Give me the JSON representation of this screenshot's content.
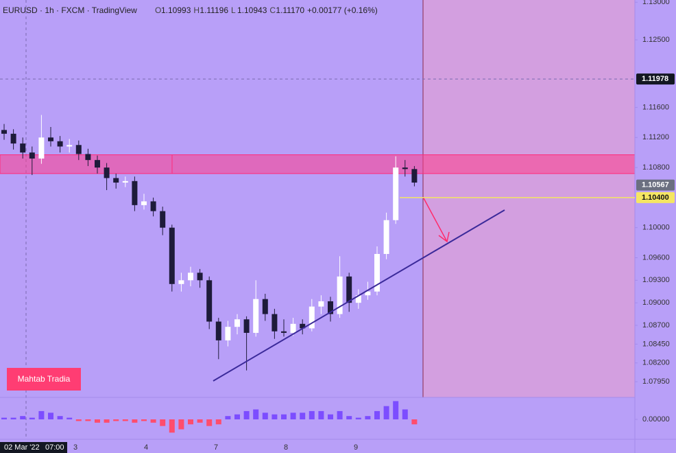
{
  "chart_data": {
    "type": "candlestick",
    "header": {
      "symbol": "EURUSD · 1h · FXCM · TradingView",
      "ohlc": [
        {
          "key": "O",
          "value": "1.10993"
        },
        {
          "key": "H",
          "value": "1.11196"
        },
        {
          "key": "L",
          "value": "1.10943"
        },
        {
          "key": "C",
          "value": "1.11170"
        }
      ],
      "change": "+0.00177 (+0.16%)"
    },
    "badge": "Mahtab Tradia",
    "x_labels": [
      "02 Mar '22",
      "07:00",
      "3",
      "4",
      "7",
      "8",
      "9"
    ],
    "up_color": "#ffffff",
    "down_color": "#1e1b3a",
    "open": [
      1.113,
      1.1125,
      1.1112,
      1.11,
      1.1092,
      1.112,
      1.1115,
      1.1108,
      1.111,
      1.1098,
      1.109,
      1.108,
      1.1066,
      1.106,
      1.1062,
      1.103,
      1.1035,
      1.1022,
      1.1,
      1.0925,
      1.093,
      1.094,
      1.093,
      1.0875,
      1.085,
      1.0868,
      1.0878,
      1.086,
      1.0905,
      1.0885,
      1.0862,
      1.086,
      1.0872,
      1.0866,
      1.0895,
      1.0902,
      1.0885,
      1.0935,
      1.09,
      1.091,
      1.0915,
      1.0965,
      1.101,
      1.108,
      1.1078
    ],
    "high": [
      1.1138,
      1.1131,
      1.112,
      1.1108,
      1.115,
      1.1134,
      1.1122,
      1.1118,
      1.1116,
      1.1105,
      1.1096,
      1.1086,
      1.1072,
      1.1068,
      1.1068,
      1.1045,
      1.104,
      1.1028,
      1.1004,
      1.094,
      1.0948,
      1.0945,
      1.0935,
      1.088,
      1.0876,
      1.0885,
      1.0882,
      1.093,
      1.0912,
      1.0892,
      1.0878,
      1.088,
      1.0878,
      1.0905,
      1.091,
      1.0908,
      1.0962,
      1.094,
      1.0918,
      1.0928,
      1.0975,
      1.102,
      1.1095,
      1.109,
      1.1082
    ],
    "low": [
      1.1117,
      1.1104,
      1.1092,
      1.107,
      1.1085,
      1.1108,
      1.11,
      1.11,
      1.109,
      1.1082,
      1.1072,
      1.105,
      1.1052,
      1.1054,
      1.1022,
      1.1024,
      1.1015,
      1.099,
      1.0915,
      1.0915,
      1.0922,
      1.092,
      1.0865,
      1.0825,
      1.0842,
      1.0858,
      1.081,
      1.0855,
      1.0876,
      1.0852,
      1.0855,
      1.0856,
      1.0858,
      1.0862,
      1.0885,
      1.0875,
      1.088,
      1.0888,
      1.0892,
      1.0904,
      1.091,
      1.0958,
      1.1005,
      1.1068,
      1.1055
    ],
    "close": [
      1.1125,
      1.1112,
      1.11,
      1.1092,
      1.112,
      1.1115,
      1.1108,
      1.111,
      1.1098,
      1.109,
      1.108,
      1.1066,
      1.106,
      1.1062,
      1.103,
      1.1035,
      1.1022,
      1.1,
      1.0925,
      1.093,
      1.094,
      1.093,
      1.0875,
      1.085,
      1.0868,
      1.0878,
      1.086,
      1.0905,
      1.0885,
      1.0862,
      1.086,
      1.0872,
      1.0866,
      1.0895,
      1.0902,
      1.0885,
      1.0935,
      1.09,
      1.091,
      1.0915,
      1.0965,
      1.101,
      1.108,
      1.1078,
      1.106
    ],
    "ylim": [
      1.0775,
      1.1303
    ],
    "yticks": [
      {
        "value": 1.13,
        "label": "1.13000"
      },
      {
        "value": 1.125,
        "label": "1.12500"
      },
      {
        "value": 1.116,
        "label": "1.11600"
      },
      {
        "value": 1.112,
        "label": "1.11200"
      },
      {
        "value": 1.108,
        "label": "1.10800"
      },
      {
        "value": 1.1,
        "label": "1.10000"
      },
      {
        "value": 1.096,
        "label": "1.09600"
      },
      {
        "value": 1.093,
        "label": "1.09300"
      },
      {
        "value": 1.09,
        "label": "1.09000"
      },
      {
        "value": 1.087,
        "label": "1.08700"
      },
      {
        "value": 1.0845,
        "label": "1.08450"
      },
      {
        "value": 1.082,
        "label": "1.08200"
      },
      {
        "value": 1.0795,
        "label": "1.07950"
      }
    ],
    "price_badges": [
      {
        "value": 1.11978,
        "label": "1.11978",
        "color": "#131722"
      },
      {
        "value": 1.10567,
        "label": "1.10567",
        "color": "#6b6f80"
      },
      {
        "value": 1.104,
        "label": "1.10400",
        "color": "#f5e663"
      }
    ],
    "zone": [
      1.1072,
      1.1097
    ],
    "oscillator": {
      "values": [
        0.0001,
        0.0001,
        0.0002,
        0.0001,
        0.0005,
        0.0004,
        0.0002,
        0.0001,
        -0.0001,
        -0.0001,
        -0.0002,
        -0.0002,
        -0.0001,
        -0.0001,
        -0.0002,
        -0.0001,
        -0.0002,
        -0.0004,
        -0.0008,
        -0.0006,
        -0.0003,
        -0.0002,
        -0.0004,
        -0.0003,
        0.0002,
        0.0003,
        0.0005,
        0.0006,
        0.0004,
        0.0003,
        0.0003,
        0.0004,
        0.0004,
        0.0005,
        0.0005,
        0.0003,
        0.0005,
        0.0002,
        0.0001,
        0.0002,
        0.0005,
        0.0008,
        0.0011,
        0.0006,
        -0.0003
      ],
      "ylim": [
        -0.0012,
        0.0012
      ],
      "yticks": [
        {
          "value": 0,
          "label": "0.00000"
        }
      ],
      "pos_color": "#7c4dff",
      "neg_color": "#ff4d6d"
    }
  }
}
